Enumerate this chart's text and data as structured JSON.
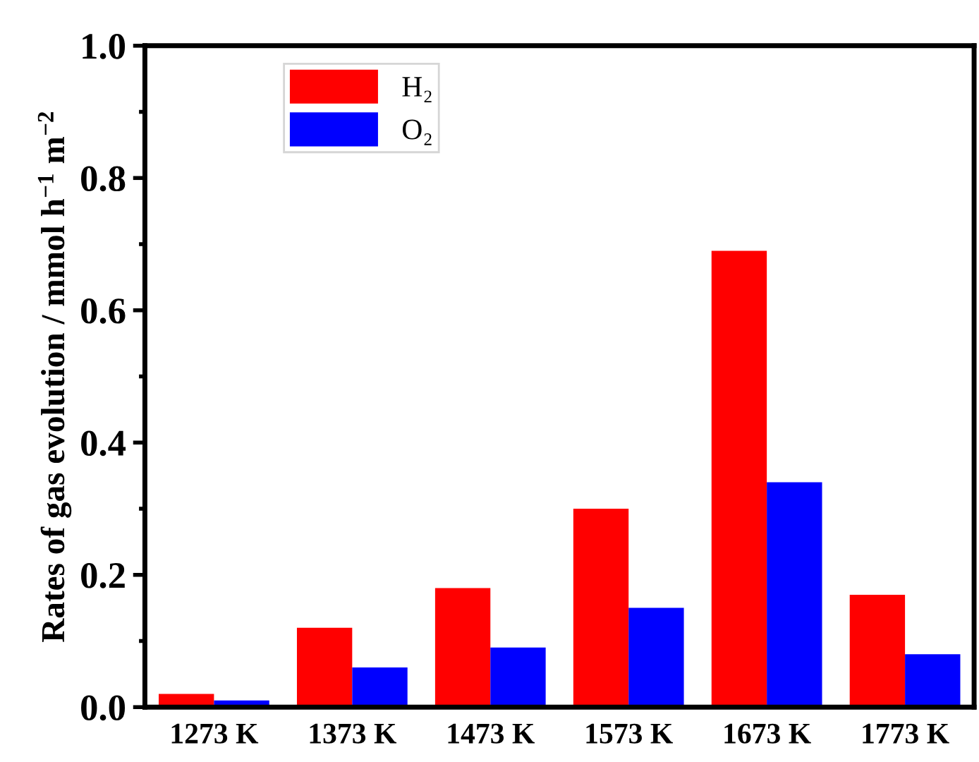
{
  "chart_data": {
    "type": "bar",
    "ylabel": "Rates of gas evolution / mmol h$^{−1}$ m$^{−2}$",
    "categories": [
      "1273 K",
      "1373 K",
      "1473 K",
      "1573 K",
      "1673 K",
      "1773 K"
    ],
    "series": [
      {
        "name": "H₂",
        "color": "#ff0000",
        "values": [
          0.02,
          0.12,
          0.18,
          0.3,
          0.69,
          0.17
        ]
      },
      {
        "name": "O₂",
        "color": "#0000ff",
        "values": [
          0.01,
          0.06,
          0.09,
          0.15,
          0.34,
          0.08
        ]
      }
    ],
    "ylim": [
      0,
      1.0
    ],
    "yticks": [
      {
        "value": 0,
        "label": "0.0"
      },
      {
        "value": 0.2,
        "label": "0.2"
      },
      {
        "value": 0.4,
        "label": "0.4"
      },
      {
        "value": 0.6,
        "label": "0.6"
      },
      {
        "value": 0.8,
        "label": "0.8"
      },
      {
        "value": 1.0,
        "label": "1.0"
      }
    ],
    "grid": false,
    "legend": "top left"
  }
}
